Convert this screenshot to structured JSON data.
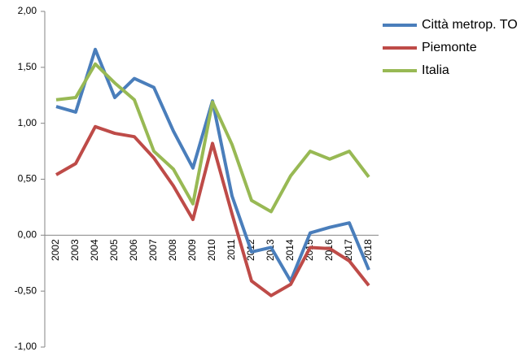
{
  "chart_data": {
    "type": "line",
    "categories": [
      "2002",
      "2003",
      "2004",
      "2005",
      "2006",
      "2007",
      "2008",
      "2009",
      "2010",
      "2011",
      "2012",
      "2013",
      "2014",
      "2015",
      "2016",
      "2017",
      "2018"
    ],
    "series": [
      {
        "name": "Città metrop. TO",
        "color": "#4a7ebb",
        "values": [
          1.15,
          1.1,
          1.66,
          1.23,
          1.4,
          1.32,
          0.93,
          0.6,
          1.2,
          0.35,
          -0.15,
          -0.11,
          -0.41,
          0.02,
          0.07,
          0.11,
          -0.31
        ]
      },
      {
        "name": "Piemonte",
        "color": "#be4b48",
        "values": [
          0.54,
          0.64,
          0.97,
          0.91,
          0.88,
          0.69,
          0.44,
          0.14,
          0.82,
          0.19,
          -0.41,
          -0.54,
          -0.44,
          -0.11,
          -0.12,
          -0.23,
          -0.45
        ]
      },
      {
        "name": "Italia",
        "color": "#98b954",
        "values": [
          1.21,
          1.23,
          1.53,
          1.36,
          1.21,
          0.75,
          0.59,
          0.28,
          1.19,
          0.81,
          0.31,
          0.21,
          0.53,
          0.75,
          0.68,
          0.75,
          0.52
        ]
      }
    ],
    "ylim": [
      -1,
      2
    ],
    "yticks": [
      {
        "value": -1,
        "label": "-1,00"
      },
      {
        "value": -0.5,
        "label": "-0,50"
      },
      {
        "value": 0,
        "label": "0,00"
      },
      {
        "value": 0.5,
        "label": "0,50"
      },
      {
        "value": 1,
        "label": "1,00"
      },
      {
        "value": 1.5,
        "label": "1,50"
      },
      {
        "value": 2,
        "label": "2,00"
      }
    ],
    "grid": false,
    "legend": "right"
  }
}
